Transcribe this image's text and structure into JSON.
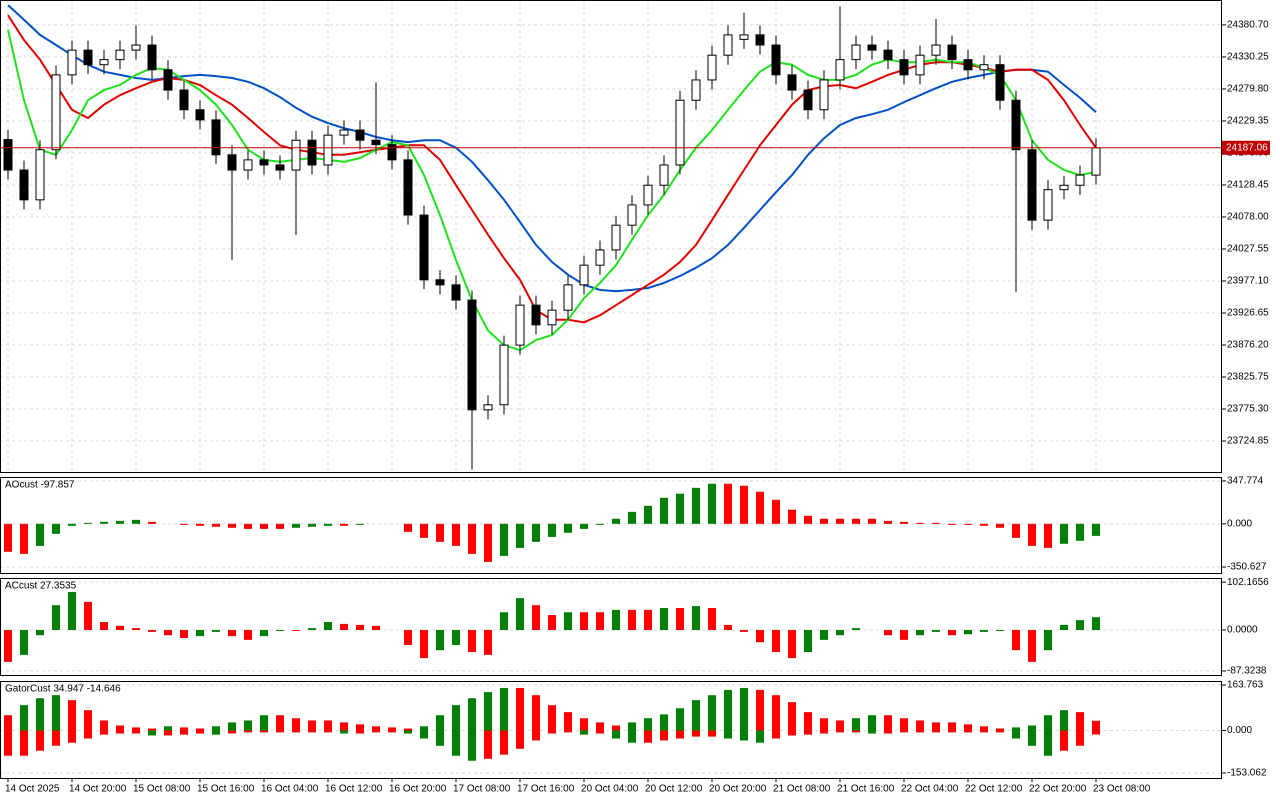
{
  "chart_data": [
    {
      "type": "candlestick",
      "categories": [
        "14 Oct 2025",
        null,
        null,
        null,
        "14 Oct 20:00",
        null,
        null,
        null,
        "15 Oct 08:00",
        null,
        null,
        null,
        "15 Oct 16:00",
        null,
        null,
        null,
        "16 Oct 04:00",
        null,
        null,
        null,
        "16 Oct 12:00",
        null,
        null,
        null,
        "16 Oct 20:00",
        null,
        null,
        null,
        "17 Oct 08:00",
        null,
        null,
        null,
        "17 Oct 16:00",
        null,
        null,
        null,
        "20 Oct 04:00",
        null,
        null,
        null,
        "20 Oct 12:00",
        null,
        null,
        null,
        "20 Oct 20:00",
        null,
        null,
        null,
        "21 Oct 08:00",
        null,
        null,
        null,
        "21 Oct 16:00",
        null,
        null,
        null,
        "22 Oct 04:00",
        null,
        null,
        null,
        "22 Oct 12:00",
        null,
        null,
        null,
        "22 Oct 20:00",
        null,
        null,
        null,
        "23 Oct 08:00"
      ],
      "open": [
        24200,
        24152,
        24105,
        24184,
        24302,
        24341,
        24318,
        24326,
        24341,
        24349,
        24310,
        24278,
        24247,
        24231,
        24176,
        24152,
        24168,
        24160,
        24152,
        24199,
        24160,
        24207,
        24215,
        24199,
        24192,
        24168,
        24081,
        23979,
        23971,
        23947,
        23774,
        23782,
        23876,
        23939,
        23908,
        23931,
        23971,
        24002,
        24026,
        24065,
        24097,
        24128,
        24160,
        24262,
        24294,
        24333,
        24358,
        24365,
        24349,
        24302,
        24278,
        24247,
        24294,
        24326,
        24349,
        24341,
        24326,
        24302,
        24333,
        24349,
        24326,
        24310,
        24318,
        24262,
        24184,
        24073,
        24121,
        24128,
        24144
      ],
      "high": [
        24215,
        24167,
        24199,
        24317,
        24356,
        24356,
        24341,
        24356,
        24380,
        24364,
        24325,
        24293,
        24262,
        24246,
        24191,
        24183,
        24183,
        24175,
        24214,
        24214,
        24222,
        24230,
        24230,
        24290,
        24207,
        24183,
        24096,
        23994,
        23986,
        23962,
        23797,
        23891,
        23954,
        23954,
        23946,
        23986,
        24017,
        24041,
        24080,
        24112,
        24143,
        24175,
        24277,
        24309,
        24348,
        24380,
        24400,
        24380,
        24364,
        24317,
        24293,
        24309,
        24410,
        24364,
        24364,
        24356,
        24341,
        24348,
        24390,
        24364,
        24341,
        24333,
        24333,
        24277,
        24199,
        24136,
        24143,
        24159,
        24202
      ],
      "low": [
        24137,
        24090,
        24090,
        24169,
        24287,
        24303,
        24303,
        24311,
        24326,
        24295,
        24263,
        24232,
        24216,
        24161,
        24010,
        24137,
        24145,
        24137,
        24050,
        24145,
        24145,
        24192,
        24184,
        24177,
        24153,
        24066,
        23964,
        23956,
        23932,
        23680,
        23759,
        23767,
        23861,
        23893,
        23893,
        23916,
        23956,
        23987,
        24011,
        24050,
        24082,
        24113,
        24145,
        24247,
        24279,
        24318,
        24343,
        24334,
        24287,
        24263,
        24232,
        24232,
        24279,
        24311,
        24326,
        24311,
        24287,
        24287,
        24318,
        24311,
        24295,
        24295,
        24247,
        23960,
        24058,
        24058,
        24106,
        24113,
        24129
      ],
      "close": [
        24152,
        24105,
        24184,
        24302,
        24341,
        24318,
        24326,
        24341,
        24349,
        24310,
        24278,
        24247,
        24231,
        24176,
        24152,
        24168,
        24160,
        24152,
        24199,
        24160,
        24207,
        24215,
        24199,
        24192,
        24168,
        24081,
        23979,
        23971,
        23947,
        23774,
        23782,
        23876,
        23939,
        23908,
        23931,
        23971,
        24002,
        24026,
        24065,
        24097,
        24128,
        24160,
        24262,
        24294,
        24333,
        24365,
        24365,
        24349,
        24302,
        24278,
        24247,
        24294,
        24326,
        24349,
        24341,
        24326,
        24302,
        24333,
        24349,
        24326,
        24310,
        24318,
        24262,
        24184,
        24073,
        24121,
        24128,
        24144,
        24187
      ],
      "up_color": "#ffffff",
      "down_color": "#000000",
      "series": [
        {
          "color": "#0050c8",
          "values": [
            24412,
            24389,
            24365,
            24349,
            24333,
            24318,
            24307,
            24302,
            24297,
            24294,
            24297,
            24300,
            24302,
            24300,
            24297,
            24291,
            24281,
            24267,
            24250,
            24236,
            24226,
            24218,
            24212,
            24204,
            24199,
            24196,
            24199,
            24199,
            24187,
            24165,
            24136,
            24105,
            24070,
            24034,
            24007,
            23987,
            23971,
            23963,
            23961,
            23963,
            23966,
            23974,
            23985,
            23998,
            24013,
            24034,
            24061,
            24089,
            24117,
            24144,
            24176,
            24202,
            24223,
            24234,
            24240,
            24247,
            24259,
            24270,
            24281,
            24291,
            24297,
            24302,
            24307,
            24310,
            24310,
            24307,
            24286,
            24266,
            24243
          ]
        },
        {
          "color": "#e00000",
          "values": [
            24396,
            24357,
            24326,
            24286,
            24247,
            24234,
            24255,
            24270,
            24281,
            24291,
            24297,
            24294,
            24286,
            24270,
            24255,
            24234,
            24212,
            24191,
            24184,
            24180,
            24176,
            24176,
            24180,
            24184,
            24187,
            24191,
            24191,
            24168,
            24128,
            24089,
            24050,
            24013,
            23979,
            23931,
            23916,
            23916,
            23912,
            23923,
            23939,
            23955,
            23971,
            23987,
            24007,
            24034,
            24073,
            24113,
            24152,
            24191,
            24223,
            24255,
            24278,
            24284,
            24286,
            24281,
            24291,
            24302,
            24310,
            24318,
            24322,
            24322,
            24318,
            24313,
            24307,
            24310,
            24310,
            24294,
            24262,
            24223,
            24187
          ]
        },
        {
          "color": "#20e020",
          "values": [
            24373,
            24262,
            24184,
            24176,
            24215,
            24262,
            24278,
            24286,
            24302,
            24313,
            24310,
            24294,
            24278,
            24255,
            24223,
            24184,
            24168,
            24165,
            24168,
            24171,
            24168,
            24165,
            24171,
            24184,
            24196,
            24191,
            24144,
            24081,
            24010,
            23947,
            23899,
            23876,
            23868,
            23884,
            23892,
            23916,
            23950,
            23974,
            24002,
            24042,
            24081,
            24113,
            24152,
            24187,
            24215,
            24247,
            24278,
            24307,
            24322,
            24318,
            24302,
            24294,
            24294,
            24302,
            24318,
            24326,
            24322,
            24322,
            24326,
            24322,
            24322,
            24313,
            24302,
            24262,
            24199,
            24168,
            24152,
            24144,
            24149
          ]
        }
      ],
      "ylim": [
        23676,
        24420
      ],
      "yticks": [
        {
          "value": 24380.7,
          "label": "24380.70"
        },
        24330.25,
        {
          "value": 24279.8,
          "label": "24279.80"
        },
        24229.35,
        {
          "value": 24178.9,
          "label": "24178.90"
        },
        24128.45,
        {
          "value": 24078.0,
          "label": "24078.00"
        },
        24027.55,
        {
          "value": 23977.1,
          "label": "23977.10"
        },
        23926.65,
        {
          "value": 23876.2,
          "label": "23876.20"
        },
        23825.75,
        {
          "value": 23775.3,
          "label": "23775.30"
        },
        23724.85
      ],
      "grid": true,
      "current_price": 24187.06,
      "current_price_color": "#c00000"
    },
    {
      "type": "bar",
      "title": "AOcust -97.857",
      "values": [
        -227,
        -244,
        -179,
        -81,
        -16,
        8,
        16,
        24,
        32,
        16,
        0,
        -8,
        -16,
        -24,
        -32,
        -41,
        -41,
        -41,
        -32,
        -24,
        -16,
        -16,
        -8,
        0,
        0,
        -65,
        -114,
        -146,
        -179,
        -244,
        -309,
        -260,
        -195,
        -146,
        -106,
        -73,
        -41,
        -8,
        41,
        97,
        146,
        211,
        244,
        292,
        325,
        325,
        309,
        260,
        195,
        114,
        65,
        41,
        41,
        41,
        41,
        24,
        16,
        8,
        8,
        -8,
        -8,
        -16,
        -32,
        -114,
        -179,
        -195,
        -162,
        -138,
        -97.857
      ],
      "up_color": "#008000",
      "down_color": "#ff0000",
      "ylim": [
        -399,
        380
      ],
      "yticks": [
        347.774,
        {
          "value": 0,
          "label": "0.000"
        },
        -350.627
      ],
      "grid": true
    },
    {
      "type": "bar",
      "title": "ACcust 27.3535",
      "values": [
        -68,
        -53,
        -11,
        53,
        81,
        60,
        17,
        9,
        4,
        -4,
        -11,
        -17,
        -13,
        -4,
        -13,
        -21,
        -13,
        -2,
        -2,
        4,
        17,
        13,
        11,
        9,
        0,
        -32,
        -60,
        -43,
        -32,
        -47,
        -53,
        38,
        68,
        53,
        32,
        38,
        38,
        38,
        43,
        43,
        43,
        47,
        47,
        51,
        47,
        11,
        -4,
        -26,
        -47,
        -60,
        -47,
        -21,
        -11,
        4,
        0,
        -11,
        -21,
        -11,
        -4,
        -11,
        -9,
        -4,
        -2,
        -43,
        -68,
        -43,
        11,
        21,
        27.3535
      ],
      "up_color": "#008000",
      "down_color": "#ff0000",
      "ylim": [
        -96,
        111
      ],
      "yticks": [
        102.1656,
        {
          "value": 0,
          "label": "0.0000"
        },
        -87.3238
      ],
      "grid": true
    },
    {
      "type": "gator",
      "title": "GatorCust 34.947 -14.646",
      "series": [
        {
          "values": [
            55,
            91,
            116,
            127,
            109,
            73,
            36,
            18,
            11,
            7,
            15,
            11,
            7,
            15,
            29,
            36,
            55,
            55,
            44,
            36,
            36,
            29,
            22,
            15,
            11,
            7,
            15,
            55,
            91,
            116,
            138,
            153,
            153,
            127,
            91,
            66,
            44,
            29,
            18,
            29,
            44,
            58,
            80,
            109,
            127,
            146,
            153,
            146,
            127,
            102,
            66,
            44,
            36,
            44,
            55,
            55,
            44,
            36,
            29,
            29,
            22,
            15,
            7,
            11,
            18,
            55,
            73,
            66,
            34.947
          ]
        },
        {
          "values": [
            -91,
            -91,
            -73,
            -55,
            -44,
            -29,
            -15,
            -11,
            -11,
            -18,
            -18,
            -15,
            -11,
            -15,
            -11,
            -7,
            -7,
            -7,
            -7,
            -7,
            -7,
            -11,
            -11,
            -7,
            -7,
            -11,
            -29,
            -55,
            -91,
            -109,
            -102,
            -87,
            -66,
            -36,
            -11,
            -7,
            -15,
            -11,
            -29,
            -44,
            -44,
            -36,
            -29,
            -22,
            -22,
            -29,
            -36,
            -44,
            -29,
            -18,
            -15,
            -11,
            -7,
            -7,
            -11,
            -11,
            -7,
            -7,
            -7,
            -7,
            -7,
            -7,
            -7,
            -29,
            -55,
            -91,
            -73,
            -55,
            -14.646
          ]
        }
      ],
      "up_color": "#008000",
      "down_color": "#ff0000",
      "ylim": [
        -171,
        178
      ],
      "yticks": [
        163.763,
        {
          "value": 0,
          "label": "0.000"
        },
        -153.062
      ],
      "grid": true
    }
  ]
}
